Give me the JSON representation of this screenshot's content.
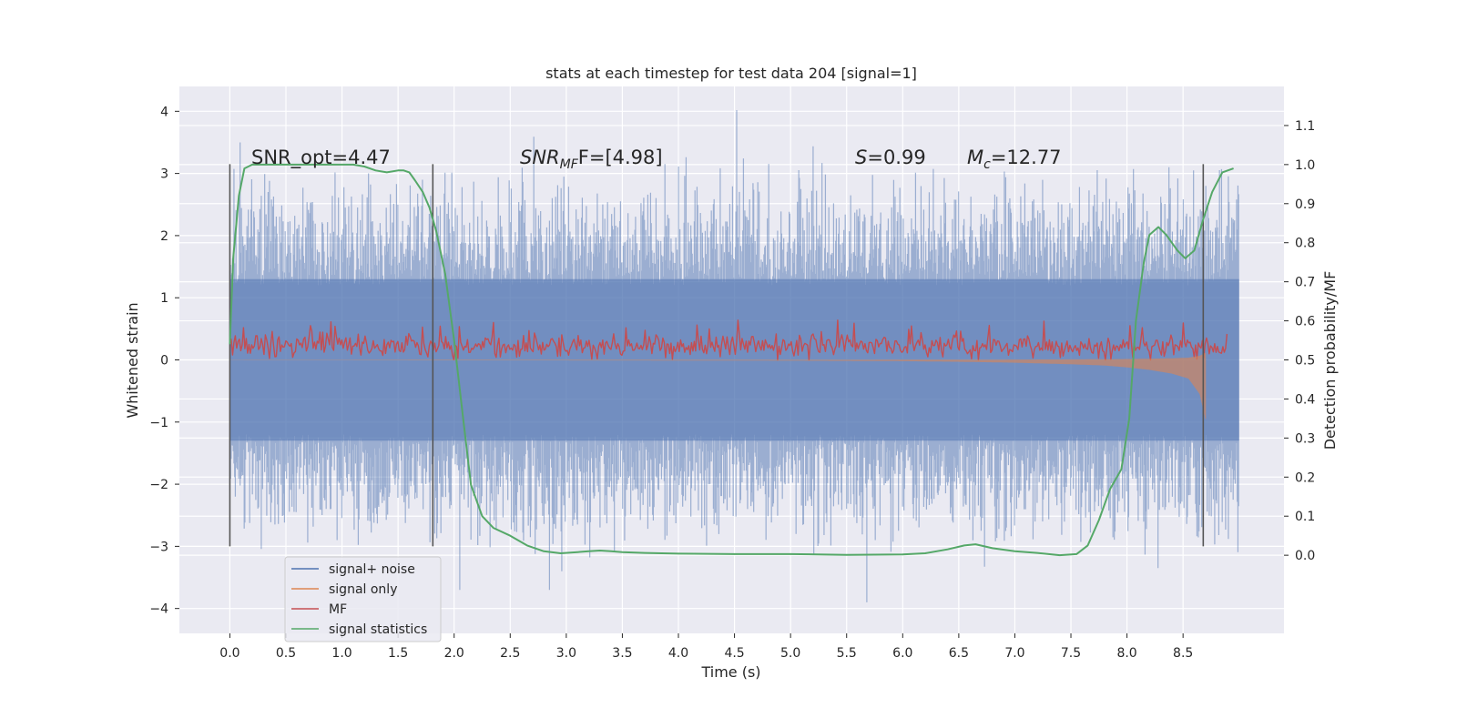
{
  "chart_data": {
    "type": "line",
    "title": "stats at each timestep for test data 204 [signal=1]",
    "xlabel": "Time (s)",
    "ylabel": "Whitened strain",
    "y2label": "Detection probability/MF",
    "xlim": [
      -0.45,
      9.4
    ],
    "ylim": [
      -4.4,
      4.4
    ],
    "y2lim": [
      -0.2,
      1.2
    ],
    "xticks": [
      0.0,
      0.5,
      1.0,
      1.5,
      2.0,
      2.5,
      3.0,
      3.5,
      4.0,
      4.5,
      5.0,
      5.5,
      6.0,
      6.5,
      7.0,
      7.5,
      8.0,
      8.5
    ],
    "xtick_labels": [
      "0.0",
      "0.5",
      "1.0",
      "1.5",
      "2.0",
      "2.5",
      "3.0",
      "3.5",
      "4.0",
      "4.5",
      "5.0",
      "5.5",
      "6.0",
      "6.5",
      "7.0",
      "7.5",
      "8.0",
      "8.5"
    ],
    "yticks": [
      4,
      3,
      2,
      1,
      0,
      -1,
      -2,
      -3,
      -4
    ],
    "ytick_labels": [
      "4",
      "3",
      "2",
      "1",
      "0",
      "−1",
      "−2",
      "−3",
      "−4"
    ],
    "y2ticks": [
      1.1,
      1.0,
      0.9,
      0.8,
      0.7,
      0.6,
      0.5,
      0.4,
      0.3,
      0.2,
      0.1,
      0.0
    ],
    "y2tick_labels": [
      "1.1",
      "1.0",
      "0.9",
      "0.8",
      "0.7",
      "0.6",
      "0.5",
      "0.4",
      "0.3",
      "0.2",
      "0.1",
      "0.0"
    ],
    "annotations": {
      "snr_opt": "SNR_opt=4.47",
      "snr_mf_main": "SNR",
      "snr_mf_sub": "MF",
      "snr_mf_rest": "F=[4.98]",
      "s_main": "S",
      "s_rest": "=0.99",
      "mc_main": "M",
      "mc_sub": "c",
      "mc_rest": "=12.77"
    },
    "vertical_lines": [
      0.0,
      1.81,
      8.68
    ],
    "vline_range": [
      -3.0,
      3.15
    ],
    "series": [
      {
        "name": "signal+ noise",
        "color": "#4c72b0",
        "style": "dense noise band",
        "x_range": [
          0.0,
          9.0
        ],
        "envelope": {
          "core_low": -1.3,
          "core_high": 1.3,
          "peak_low": -3.0,
          "peak_high": 3.1
        },
        "notable_peaks": [
          {
            "x": 4.52,
            "y": 4.02
          },
          {
            "x": 5.68,
            "y": -3.9
          },
          {
            "x": 2.05,
            "y": -3.7
          },
          {
            "x": 2.85,
            "y": -3.7
          }
        ]
      },
      {
        "name": "signal only",
        "color": "#dd8452",
        "style": "chirp",
        "x": [
          0.0,
          1.0,
          2.0,
          3.0,
          4.0,
          5.0,
          6.0,
          6.5,
          7.0,
          7.5,
          7.8,
          8.0,
          8.2,
          8.4,
          8.55,
          8.65,
          8.7
        ],
        "amplitude": [
          0.005,
          0.006,
          0.007,
          0.008,
          0.01,
          0.013,
          0.02,
          0.03,
          0.045,
          0.07,
          0.09,
          0.12,
          0.16,
          0.22,
          0.3,
          0.55,
          0.95
        ]
      },
      {
        "name": "MF",
        "color": "#c44e52",
        "style": "noisy band",
        "x_range": [
          0.0,
          8.9
        ],
        "mean": 0.22,
        "range": [
          0.0,
          0.65
        ]
      },
      {
        "name": "signal statistics",
        "color": "#55a868",
        "axis": "right",
        "x": [
          0.0,
          0.03,
          0.08,
          0.13,
          0.2,
          0.3,
          0.45,
          0.6,
          0.8,
          1.0,
          1.1,
          1.2,
          1.3,
          1.4,
          1.5,
          1.55,
          1.6,
          1.65,
          1.72,
          1.78,
          1.84,
          1.92,
          2.0,
          2.08,
          2.15,
          2.25,
          2.35,
          2.5,
          2.65,
          2.8,
          2.95,
          3.1,
          3.2,
          3.3,
          3.4,
          3.5,
          3.7,
          4.0,
          4.5,
          5.0,
          5.5,
          6.0,
          6.2,
          6.4,
          6.55,
          6.65,
          6.8,
          7.0,
          7.2,
          7.4,
          7.55,
          7.65,
          7.75,
          7.85,
          7.95,
          8.02,
          8.08,
          8.15,
          8.2,
          8.28,
          8.35,
          8.45,
          8.52,
          8.6,
          8.68,
          8.76,
          8.85,
          8.95
        ],
        "values": [
          0.54,
          0.76,
          0.92,
          0.99,
          1.0,
          1.0,
          1.0,
          1.0,
          1.0,
          1.0,
          1.0,
          0.995,
          0.985,
          0.98,
          0.985,
          0.985,
          0.98,
          0.96,
          0.93,
          0.89,
          0.83,
          0.72,
          0.55,
          0.35,
          0.18,
          0.1,
          0.07,
          0.05,
          0.025,
          0.01,
          0.005,
          0.008,
          0.01,
          0.012,
          0.01,
          0.008,
          0.006,
          0.004,
          0.003,
          0.003,
          0.001,
          0.002,
          0.005,
          0.015,
          0.025,
          0.028,
          0.018,
          0.01,
          0.006,
          0.0,
          0.003,
          0.025,
          0.09,
          0.17,
          0.22,
          0.35,
          0.6,
          0.75,
          0.82,
          0.84,
          0.82,
          0.78,
          0.76,
          0.78,
          0.86,
          0.93,
          0.98,
          0.99
        ]
      }
    ],
    "legend": {
      "position": "lower-left",
      "entries": [
        {
          "label": "signal+ noise",
          "color": "#4c72b0"
        },
        {
          "label": "signal only",
          "color": "#dd8452"
        },
        {
          "label": "MF",
          "color": "#c44e52"
        },
        {
          "label": "signal statistics",
          "color": "#55a868"
        }
      ]
    },
    "colors": {
      "background": "#eaeaf2",
      "grid": "#ffffff",
      "vline": "#555555"
    },
    "grid": true
  }
}
